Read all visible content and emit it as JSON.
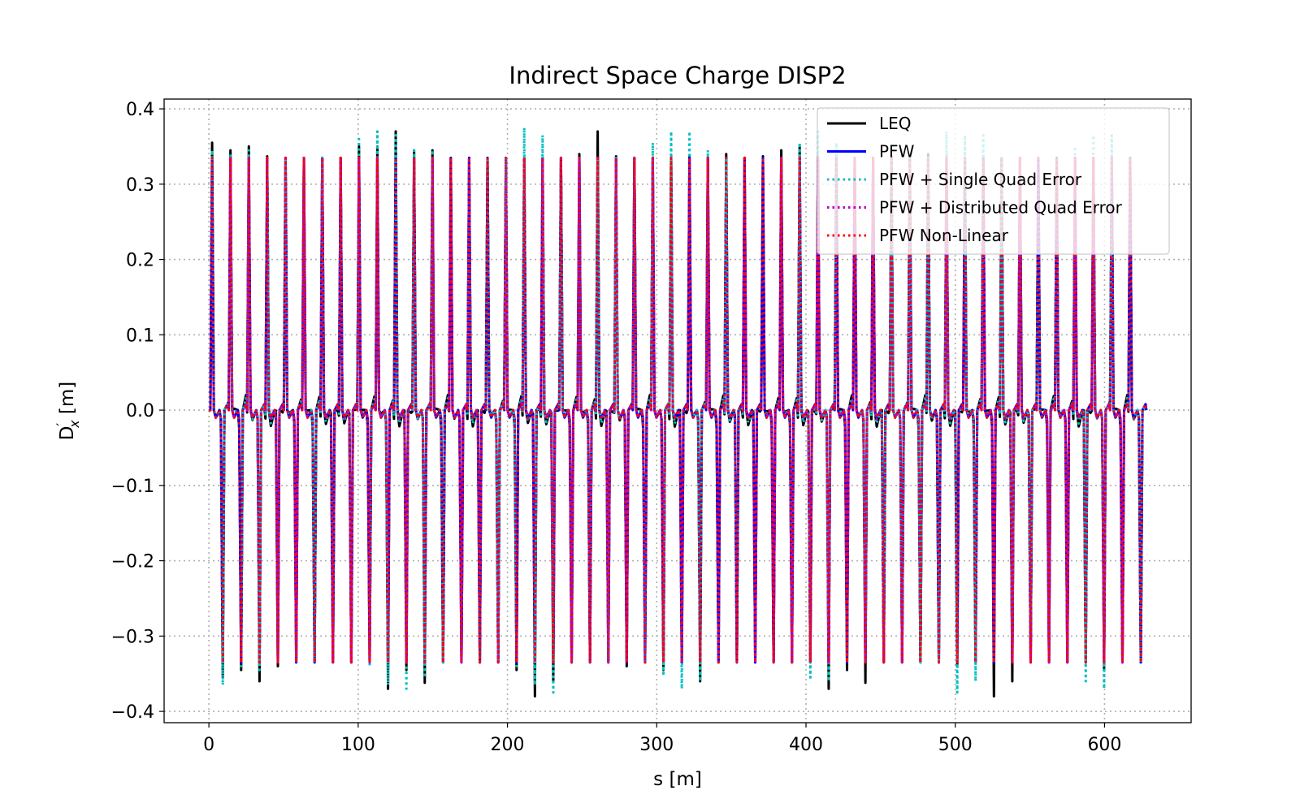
{
  "chart_data": {
    "type": "line",
    "title": "Indirect Space Charge DISP2",
    "xlabel": "s [m]",
    "ylabel_main": "D",
    "ylabel_sup": "′",
    "ylabel_sub": "x",
    "ylabel_unit": " [m]",
    "xlim": [
      -30,
      658
    ],
    "ylim": [
      -0.415,
      0.413
    ],
    "xticks": [
      0,
      100,
      200,
      300,
      400,
      500,
      600
    ],
    "xtick_labels": [
      "0",
      "100",
      "200",
      "300",
      "400",
      "500",
      "600"
    ],
    "yticks": [
      0.4,
      0.3,
      0.2,
      0.1,
      0.0,
      -0.1,
      -0.2,
      -0.3,
      -0.4
    ],
    "ytick_labels": [
      "0.4",
      "0.3",
      "0.2",
      "0.1",
      "0.0",
      "−0.1",
      "−0.2",
      "−0.3",
      "−0.4"
    ],
    "grid": true,
    "legend_position": "top-right",
    "cell_length": 12.3,
    "s_start": 0,
    "s_end": 628,
    "peak_magnitude": 0.335,
    "series": [
      {
        "name": "LEQ",
        "color": "#000000",
        "style": "solid",
        "pos_peaks": [
          0.355,
          0.345,
          0.35,
          0.337,
          0.335,
          0.335,
          0.335,
          0.335,
          0.35,
          0.35,
          0.37,
          0.345,
          0.345,
          0.335,
          0.335,
          0.335,
          0.335,
          0.335,
          0.335,
          0.335,
          0.34,
          0.37,
          0.337,
          0.335,
          0.335,
          0.335,
          0.337,
          0.335,
          0.34,
          0.335,
          0.337,
          0.345,
          0.35,
          0.337,
          0.335,
          0.335,
          0.335,
          0.337,
          0.335,
          0.34,
          0.337,
          0.335,
          0.335,
          0.335,
          0.335,
          0.335,
          0.335,
          0.335,
          0.335,
          0.335,
          0.335,
          0.337
        ],
        "neg_peaks": [
          -0.355,
          -0.345,
          -0.36,
          -0.34,
          -0.335,
          -0.335,
          -0.335,
          -0.335,
          -0.335,
          -0.37,
          -0.345,
          -0.362,
          -0.335,
          -0.335,
          -0.335,
          -0.335,
          -0.345,
          -0.38,
          -0.36,
          -0.335,
          -0.335,
          -0.335,
          -0.34,
          -0.335,
          -0.345,
          -0.335,
          -0.36,
          -0.335,
          -0.335,
          -0.335,
          -0.335,
          -0.335,
          -0.335,
          -0.37,
          -0.345,
          -0.362,
          -0.335,
          -0.335,
          -0.335,
          -0.335,
          -0.34,
          -0.335,
          -0.38,
          -0.36,
          -0.335,
          -0.335,
          -0.335,
          -0.335,
          -0.345,
          -0.335,
          -0.335
        ]
      },
      {
        "name": "PFW",
        "color": "#0000ff",
        "style": "solid"
      },
      {
        "name": "PFW + Single Quad Error",
        "color": "#00bfbf",
        "style": "dotted",
        "pos_peaks": [
          0.345,
          0.34,
          0.345,
          0.337,
          0.335,
          0.335,
          0.335,
          0.335,
          0.36,
          0.37,
          0.365,
          0.345,
          0.345,
          0.335,
          0.335,
          0.335,
          0.335,
          0.375,
          0.365,
          0.335,
          0.335,
          0.335,
          0.335,
          0.335,
          0.355,
          0.37,
          0.37,
          0.345,
          0.335,
          0.335,
          0.335,
          0.335,
          0.355,
          0.37,
          0.355,
          0.335,
          0.335,
          0.335,
          0.335,
          0.335,
          0.37,
          0.365,
          0.365,
          0.335,
          0.335,
          0.335,
          0.335,
          0.35,
          0.365,
          0.365,
          0.335,
          0.335
        ],
        "neg_peaks": [
          -0.365,
          -0.34,
          -0.345,
          -0.335,
          -0.335,
          -0.335,
          -0.335,
          -0.335,
          -0.34,
          -0.365,
          -0.37,
          -0.355,
          -0.335,
          -0.335,
          -0.335,
          -0.335,
          -0.34,
          -0.365,
          -0.375,
          -0.335,
          -0.335,
          -0.335,
          -0.335,
          -0.335,
          -0.35,
          -0.37,
          -0.36,
          -0.335,
          -0.335,
          -0.335,
          -0.335,
          -0.335,
          -0.355,
          -0.36,
          -0.335,
          -0.335,
          -0.335,
          -0.335,
          -0.335,
          -0.335,
          -0.375,
          -0.36,
          -0.335,
          -0.335,
          -0.335,
          -0.335,
          -0.335,
          -0.36,
          -0.37,
          -0.335,
          -0.335
        ]
      },
      {
        "name": "PFW + Distributed Quad Error",
        "color": "#bf00bf",
        "style": "dotted"
      },
      {
        "name": "PFW Non-Linear",
        "color": "#ff0000",
        "style": "dotted"
      }
    ]
  }
}
